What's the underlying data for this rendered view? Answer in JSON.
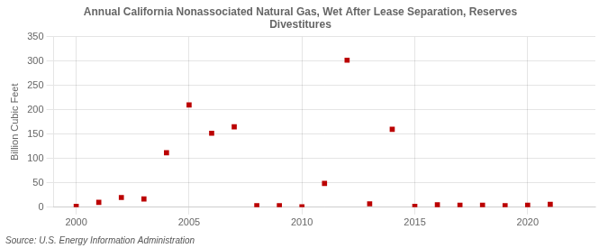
{
  "chart_data": {
    "type": "scatter",
    "title": "Annual California Nonassociated Natural Gas, Wet After Lease Separation, Reserves",
    "subtitle": "Divestitures",
    "ylabel": "Billion Cubic Feet",
    "annotation": "Source: U.S. Energy Information Administration",
    "x": [
      2000,
      2001,
      2002,
      2003,
      2004,
      2005,
      2006,
      2007,
      2008,
      2009,
      2010,
      2011,
      2012,
      2013,
      2014,
      2015,
      2016,
      2017,
      2018,
      2019,
      2020,
      2021
    ],
    "values": [
      2,
      10,
      20,
      17,
      112,
      210,
      152,
      165,
      3,
      3,
      1,
      49,
      302,
      7,
      160,
      2,
      5,
      4,
      4,
      3,
      4,
      6
    ],
    "color": "#bb0000",
    "marker": "square",
    "xlim": [
      1999,
      2023
    ],
    "xticks": [
      2000,
      2005,
      2010,
      2015,
      2020
    ],
    "ylim": [
      0,
      350
    ],
    "yticks": [
      0,
      50,
      100,
      150,
      200,
      250,
      300,
      350
    ],
    "grid": true
  }
}
